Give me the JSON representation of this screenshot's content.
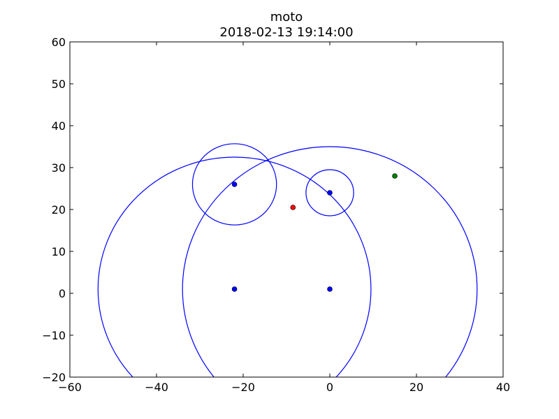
{
  "chart_data": {
    "type": "scatter",
    "title": "moto",
    "subtitle": "2018-02-13 19:14:00",
    "xlabel": "",
    "ylabel": "",
    "xlim": [
      -60,
      40
    ],
    "ylim": [
      -20,
      60
    ],
    "xticks": [
      -60,
      -40,
      -20,
      0,
      20,
      40
    ],
    "yticks": [
      -20,
      -10,
      0,
      10,
      20,
      30,
      40,
      50,
      60
    ],
    "grid": false,
    "points": [
      {
        "x": -22,
        "y": 26,
        "color": "#0000ff"
      },
      {
        "x": 0,
        "y": 24,
        "color": "#0000ff"
      },
      {
        "x": -22,
        "y": 1,
        "color": "#0000ff"
      },
      {
        "x": 0,
        "y": 1,
        "color": "#0000ff"
      },
      {
        "x": -8.5,
        "y": 20.5,
        "color": "#ff0000"
      },
      {
        "x": 15,
        "y": 28,
        "color": "#008000"
      }
    ],
    "circles": [
      {
        "cx": -22,
        "cy": 26,
        "r": 9.7,
        "color": "#0000ff"
      },
      {
        "cx": 0,
        "cy": 24,
        "r": 5.5,
        "color": "#0000ff"
      },
      {
        "cx": -22,
        "cy": 1,
        "r": 31.5,
        "color": "#0000ff"
      },
      {
        "cx": 0,
        "cy": 1,
        "r": 34,
        "color": "#0000ff"
      }
    ]
  }
}
